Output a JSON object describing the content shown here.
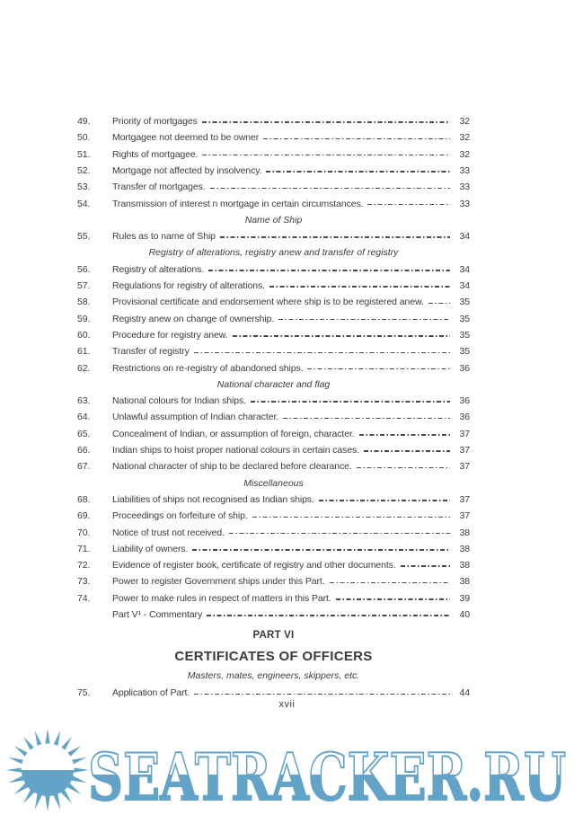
{
  "page": {
    "folio": "xvii"
  },
  "colors": {
    "text": "#3b3b3b",
    "watermark_blue": "#64a3c8"
  },
  "toc": {
    "lines": [
      {
        "type": "item",
        "num": "49.",
        "title": "Priority of mortgages",
        "page": "32"
      },
      {
        "type": "item",
        "num": "50.",
        "title": "Mortgagee not deemed to be owner",
        "page": "32"
      },
      {
        "type": "item",
        "num": "51.",
        "title": "Rights of mortgagee.",
        "page": "32"
      },
      {
        "type": "item",
        "num": "52.",
        "title": "Mortgage not affected by insolvency.",
        "page": "33"
      },
      {
        "type": "item",
        "num": "53.",
        "title": "Transfer of mortgages.",
        "page": "33"
      },
      {
        "type": "item",
        "num": "54.",
        "title": "Transmission of interest n mortgage in certain circumstances.",
        "page": "33"
      },
      {
        "type": "heading",
        "text": "Name of Ship"
      },
      {
        "type": "item",
        "num": "55.",
        "title": "Rules as to name of Ship",
        "page": "34"
      },
      {
        "type": "heading",
        "text": "Registry of alterations, registry anew and transfer of registry"
      },
      {
        "type": "item",
        "num": "56.",
        "title": "Registry of alterations.",
        "page": "34"
      },
      {
        "type": "item",
        "num": "57.",
        "title": "Regulations for registry of alterations.",
        "page": "34"
      },
      {
        "type": "item",
        "num": "58.",
        "title": "Provisional certificate and endorsement where ship is to be registered anew.",
        "page": "35"
      },
      {
        "type": "item",
        "num": "59.",
        "title": "Registry anew on change of ownership.",
        "page": "35"
      },
      {
        "type": "item",
        "num": "60.",
        "title": "Procedure for registry anew.",
        "page": "35"
      },
      {
        "type": "item",
        "num": "61.",
        "title": "Transfer of registry",
        "page": "35"
      },
      {
        "type": "item",
        "num": "62.",
        "title": "Restrictions on re-registry of abandoned ships.",
        "page": "36"
      },
      {
        "type": "heading",
        "text": "National character and flag"
      },
      {
        "type": "item",
        "num": "63.",
        "title": "National colours for Indian ships.",
        "page": "36"
      },
      {
        "type": "item",
        "num": "64.",
        "title": "Unlawful assumption of Indian character.",
        "page": "36"
      },
      {
        "type": "item",
        "num": "65.",
        "title": "Concealment of Indian, or assumption of foreign, character.",
        "page": "37"
      },
      {
        "type": "item",
        "num": "66.",
        "title": "Indian ships to hoist proper national colours in certain cases.",
        "page": "37"
      },
      {
        "type": "item",
        "num": "67.",
        "title": "National character of ship to be declared before clearance.",
        "page": "37"
      },
      {
        "type": "heading",
        "text": "Miscellaneous"
      },
      {
        "type": "item",
        "num": "68.",
        "title": "Liabilities of ships not recognised as Indian ships.",
        "page": "37"
      },
      {
        "type": "item",
        "num": "69.",
        "title": "Proceedings on forfeiture of ship.",
        "page": "37"
      },
      {
        "type": "item",
        "num": "70.",
        "title": "Notice of trust not received.",
        "page": "38"
      },
      {
        "type": "item",
        "num": "71.",
        "title": "Liability of owners.",
        "page": "38"
      },
      {
        "type": "item",
        "num": "72.",
        "title": "Evidence of register book, certificate of registry and other documents.",
        "page": "38"
      },
      {
        "type": "item",
        "num": "73.",
        "title": "Power to register Government ships under this Part.",
        "page": "38"
      },
      {
        "type": "item",
        "num": "74.",
        "title": "Power to make rules in respect of matters in this Part.",
        "page": "39"
      },
      {
        "type": "item",
        "num": "",
        "title": "Part V¹ - Commentary",
        "page": "40"
      },
      {
        "type": "part",
        "text": "PART VI"
      },
      {
        "type": "part-title",
        "text": "CERTIFICATES OF OFFICERS"
      },
      {
        "type": "subheading",
        "text": "Masters, mates, engineers, skippers, etc."
      },
      {
        "type": "item",
        "num": "75.",
        "title": "Application of Part.",
        "page": "44"
      }
    ]
  },
  "watermark": {
    "text": "SEATRACKER.RU",
    "icon": "sun-over-sea-icon"
  }
}
